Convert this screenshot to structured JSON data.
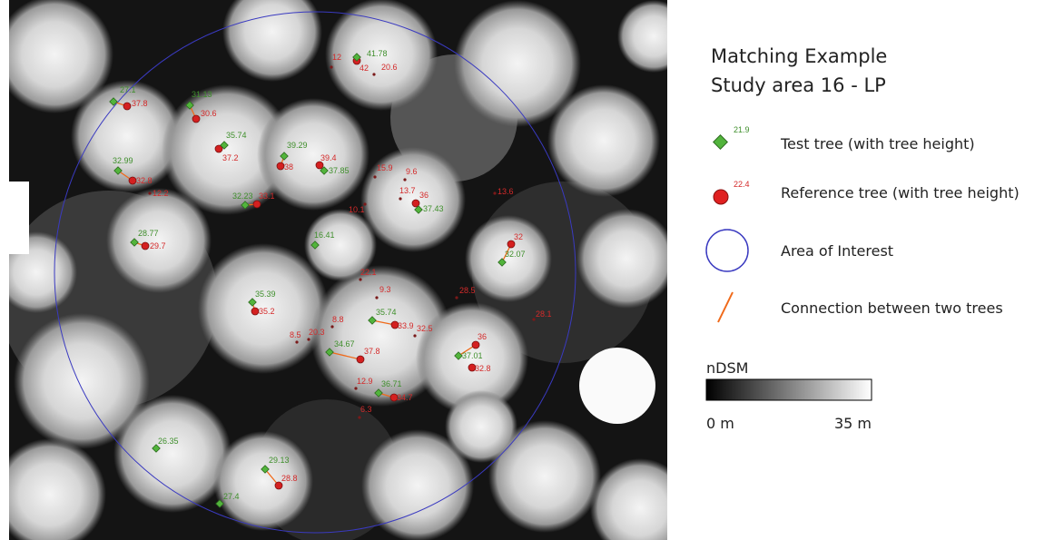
{
  "legend": {
    "title": "Matching Example",
    "subtitle": "Study area 16 - LP",
    "items": [
      {
        "sample": "21.9",
        "label": "Test tree (with tree height)"
      },
      {
        "sample": "22.4",
        "label": "Reference  tree (with tree height)"
      },
      {
        "label": "Area of Interest"
      },
      {
        "label": "Connection between two trees"
      }
    ]
  },
  "colorbar": {
    "title": "nDSM",
    "min_label": "0 m",
    "max_label": "35 m"
  },
  "test_trees": [
    41.78,
    27.1,
    31.13,
    35.74,
    39.29,
    32.99,
    37.85,
    32.23,
    37.43,
    28.77,
    16.41,
    32.07,
    35.39,
    35.74,
    34.67,
    37.01,
    36.71,
    26.35,
    29.13,
    27.4
  ],
  "reference_trees": [
    42,
    12,
    20.6,
    37.8,
    30.6,
    37.2,
    38,
    39.4,
    32.8,
    12.2,
    33.1,
    15.9,
    9.6,
    13.7,
    36,
    10.1,
    13.6,
    29.7,
    32,
    22.1,
    9.3,
    28.5,
    28.1,
    35.2,
    8.8,
    33.9,
    32.5,
    20.3,
    8.5,
    36,
    37.8,
    32.8,
    12.9,
    34.7,
    6.3,
    28.8
  ]
}
